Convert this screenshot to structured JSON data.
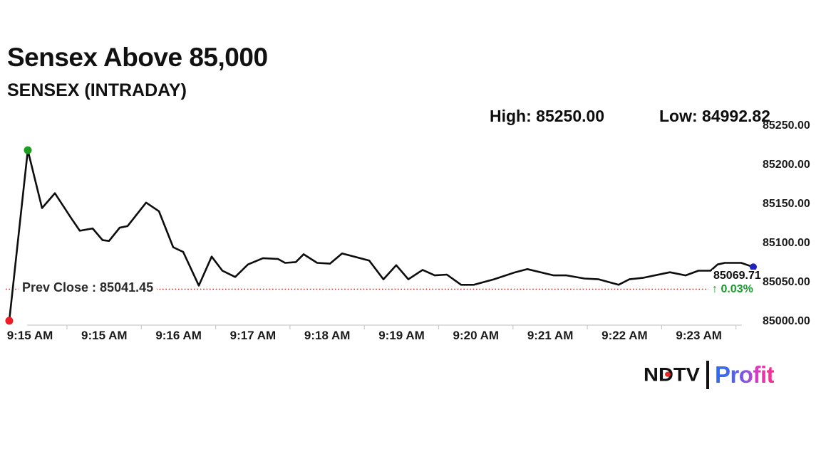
{
  "header": {
    "title": "Sensex Above 85,000",
    "subtitle": "SENSEX (INTRADAY)",
    "high_label": "High: 85250.00",
    "low_label": "Low: 84992.82"
  },
  "chart_data": {
    "type": "line",
    "title": "SENSEX (INTRADAY)",
    "grid": "off",
    "legend": "none",
    "high": 85250.0,
    "low": 84992.82,
    "x_axis": {
      "labels": [
        "9:15 AM",
        "9:15 AM",
        "9:16 AM",
        "9:17 AM",
        "9:18 AM",
        "9:19 AM",
        "9:20 AM",
        "9:21 AM",
        "9:22 AM",
        "9:23 AM"
      ]
    },
    "y_axis": {
      "labels": [
        "85250.00",
        "85200.00",
        "85150.00",
        "85100.00",
        "85050.00",
        "85000.00"
      ],
      "min": 85000,
      "max": 85250,
      "tick_step": 50
    },
    "prev_close": {
      "label": "Prev Close : 85041.45",
      "value": 85041.45,
      "line_color": "#b01818"
    },
    "last_price": {
      "value_label": "85069.71",
      "change_icon": "↑",
      "change_label": "0.03%",
      "change_color": "#169c2a"
    },
    "markers": {
      "start_color": "#ee1c25",
      "peak_color": "#1e9e1e",
      "end_color": "#2121bb"
    },
    "series": [
      {
        "name": "SENSEX",
        "color": "#0d0d0d",
        "points": [
          [
            13,
            85001
          ],
          [
            39,
            85219
          ],
          [
            59,
            85145
          ],
          [
            77,
            85164
          ],
          [
            100,
            85132
          ],
          [
            112,
            85116
          ],
          [
            130,
            85119
          ],
          [
            144,
            85104
          ],
          [
            153,
            85103
          ],
          [
            168,
            85120
          ],
          [
            179,
            85122
          ],
          [
            205,
            85152
          ],
          [
            223,
            85141
          ],
          [
            243,
            85095
          ],
          [
            257,
            85089
          ],
          [
            279,
            85046
          ],
          [
            297,
            85083
          ],
          [
            312,
            85065
          ],
          [
            330,
            85057
          ],
          [
            348,
            85073
          ],
          [
            369,
            85081
          ],
          [
            390,
            85080
          ],
          [
            400,
            85075
          ],
          [
            415,
            85076
          ],
          [
            426,
            85086
          ],
          [
            445,
            85075
          ],
          [
            463,
            85074
          ],
          [
            480,
            85087
          ],
          [
            518,
            85078
          ],
          [
            538,
            85054
          ],
          [
            556,
            85072
          ],
          [
            573,
            85054
          ],
          [
            593,
            85066
          ],
          [
            610,
            85059
          ],
          [
            627,
            85060
          ],
          [
            647,
            85047
          ],
          [
            665,
            85047
          ],
          [
            693,
            85054
          ],
          [
            723,
            85063
          ],
          [
            740,
            85067
          ],
          [
            777,
            85059
          ],
          [
            795,
            85059
          ],
          [
            820,
            85055
          ],
          [
            840,
            85054
          ],
          [
            868,
            85047
          ],
          [
            883,
            85054
          ],
          [
            903,
            85056
          ],
          [
            940,
            85063
          ],
          [
            962,
            85059
          ],
          [
            980,
            85065
          ],
          [
            997,
            85065
          ],
          [
            1007,
            85073
          ],
          [
            1017,
            85075
          ],
          [
            1040,
            85075
          ],
          [
            1057,
            85069.71
          ]
        ]
      }
    ]
  },
  "footer": {
    "brand": {
      "ndtv": "NDTV",
      "profit": "Profit",
      "ndtv_color": "#111111",
      "dot_color": "#e8251f",
      "profit_gradient_start": "#2a6cf2",
      "profit_gradient_end": "#fb2d8a"
    }
  }
}
